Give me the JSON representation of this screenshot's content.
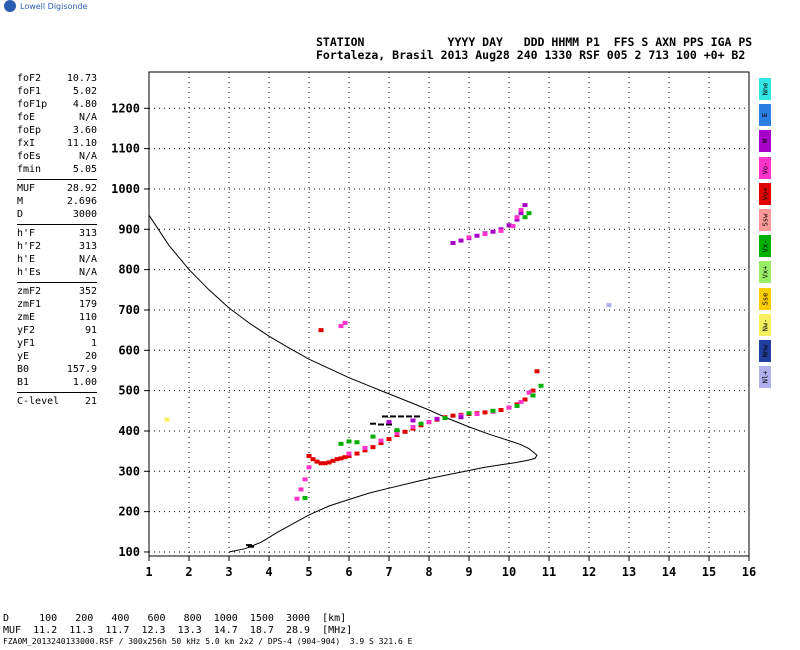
{
  "logo": {
    "text": "Lowell Digisonde",
    "icon": "globe-icon"
  },
  "header": {
    "line1": "STATION            YYYY DAY   DDD HHMM P1  FFS S AXN PPS IGA PS",
    "line2": "Fortaleza, Brasil 2013 Aug28 240 1330 RSF 005 2 713 100 +0+ B2"
  },
  "params": {
    "group1": [
      {
        "name": "foF2",
        "value": "10.73"
      },
      {
        "name": "foF1",
        "value": "5.02"
      },
      {
        "name": "foF1p",
        "value": "4.80"
      },
      {
        "name": "foE",
        "value": "N/A"
      },
      {
        "name": "foEp",
        "value": "3.60"
      },
      {
        "name": "fxI",
        "value": "11.10"
      },
      {
        "name": "foEs",
        "value": "N/A"
      },
      {
        "name": "fmin",
        "value": "5.05"
      }
    ],
    "group2": [
      {
        "name": "MUF",
        "value": "28.92"
      },
      {
        "name": "M",
        "value": "2.696"
      },
      {
        "name": "D",
        "value": "3000"
      }
    ],
    "group3": [
      {
        "name": "h'F",
        "value": "313"
      },
      {
        "name": "h'F2",
        "value": "313"
      },
      {
        "name": "h'E",
        "value": "N/A"
      },
      {
        "name": "h'Es",
        "value": "N/A"
      }
    ],
    "group4": [
      {
        "name": "zmF2",
        "value": "352"
      },
      {
        "name": "zmF1",
        "value": "179"
      },
      {
        "name": "zmE",
        "value": "110"
      },
      {
        "name": "yF2",
        "value": "91"
      },
      {
        "name": "yF1",
        "value": "1"
      },
      {
        "name": "yE",
        "value": "20"
      },
      {
        "name": "B0",
        "value": "157.9"
      },
      {
        "name": "B1",
        "value": "1.00"
      }
    ],
    "group5": [
      {
        "name": "C-level",
        "value": "21"
      }
    ]
  },
  "legend": [
    {
      "label": "Nne",
      "color": "#33e6e6"
    },
    {
      "label": "E",
      "color": "#2b7fe0"
    },
    {
      "label": "W",
      "color": "#a600c8"
    },
    {
      "label": "Vo-",
      "color": "#ff33cc"
    },
    {
      "label": "Vo+",
      "color": "#e00000"
    },
    {
      "label": "Ssw",
      "color": "#ff9999"
    },
    {
      "label": "Vx-",
      "color": "#00b000"
    },
    {
      "label": "Vx+",
      "color": "#99ee66"
    },
    {
      "label": "Sse",
      "color": "#ffcc00"
    },
    {
      "label": "Nw-",
      "color": "#f5f060"
    },
    {
      "label": "Nnw",
      "color": "#2040a0"
    },
    {
      "label": "Nl+",
      "color": "#b0b0ee"
    }
  ],
  "chart_data": {
    "type": "scatter",
    "xlim": [
      1,
      16
    ],
    "ylim": [
      90,
      1290
    ],
    "xticks": [
      1,
      2,
      3,
      4,
      5,
      6,
      7,
      8,
      9,
      10,
      11,
      12,
      13,
      14,
      15,
      16
    ],
    "yticks": [
      100,
      200,
      300,
      400,
      500,
      600,
      700,
      800,
      900,
      1000,
      1100,
      1200
    ],
    "grid": true,
    "series": [
      {
        "color": "#e00000",
        "x": [
          5.0,
          5.1,
          5.2,
          5.3,
          5.4,
          5.5,
          5.6,
          5.7,
          5.8,
          5.9,
          6.0,
          6.2,
          6.4,
          6.6,
          6.8,
          7.0,
          7.2,
          7.4,
          7.6,
          7.8,
          8.0,
          8.2,
          8.4,
          8.6,
          8.8,
          9.0,
          9.2,
          9.4,
          9.6,
          9.8,
          10.0,
          10.2,
          10.4,
          10.6,
          10.7
        ],
        "y": [
          338,
          330,
          324,
          320,
          320,
          322,
          326,
          330,
          332,
          335,
          338,
          344,
          352,
          360,
          370,
          380,
          390,
          398,
          406,
          414,
          422,
          428,
          434,
          438,
          440,
          442,
          444,
          446,
          448,
          452,
          458,
          466,
          478,
          500,
          548
        ]
      },
      {
        "color": "#ff33cc",
        "x": [
          4.7,
          4.8,
          4.9,
          5.0,
          6.0,
          6.4,
          6.8,
          7.2,
          7.6,
          8.0,
          8.4,
          8.8,
          9.2,
          9.6,
          10.0,
          10.3,
          10.5
        ],
        "y": [
          232,
          255,
          280,
          310,
          344,
          358,
          376,
          394,
          410,
          422,
          432,
          438,
          442,
          448,
          458,
          472,
          495
        ]
      },
      {
        "color": "#00b000",
        "x": [
          4.9,
          5.8,
          6.0,
          6.2,
          6.6,
          7.2,
          7.8,
          8.4,
          9.0,
          9.6,
          10.2,
          10.6,
          10.8
        ],
        "y": [
          234,
          368,
          374,
          372,
          386,
          402,
          418,
          432,
          444,
          450,
          462,
          488,
          512
        ]
      },
      {
        "color": "#a600c8",
        "x": [
          8.6,
          8.8,
          9.0,
          9.2,
          9.4,
          9.6,
          9.8,
          10.0,
          10.2,
          10.3,
          10.4,
          7.0,
          7.6,
          8.2,
          8.8
        ],
        "y": [
          866,
          872,
          878,
          884,
          890,
          894,
          900,
          910,
          924,
          940,
          960,
          422,
          426,
          430,
          434
        ]
      },
      {
        "color": "#ff33cc",
        "x": [
          9.0,
          9.4,
          9.8,
          10.1,
          10.2,
          10.3
        ],
        "y": [
          880,
          888,
          896,
          908,
          930,
          948
        ]
      },
      {
        "color": "#e00000",
        "x": [
          5.3
        ],
        "y": [
          650
        ]
      },
      {
        "color": "#ff33cc",
        "x": [
          5.8,
          5.9
        ],
        "y": [
          660,
          668
        ]
      },
      {
        "color": "#00b000",
        "x": [
          10.4,
          10.5
        ],
        "y": [
          930,
          940
        ]
      },
      {
        "color": "#f5f060",
        "x": [
          1.45
        ],
        "y": [
          428
        ]
      },
      {
        "color": "#b0b0ee",
        "x": [
          12.5
        ],
        "y": [
          712
        ]
      }
    ],
    "black_points": {
      "x": [
        6.9,
        7.1,
        7.3,
        7.5,
        7.7,
        6.6,
        6.8,
        7.0,
        3.5,
        3.55
      ],
      "y": [
        436,
        436,
        436,
        436,
        436,
        418,
        416,
        416,
        117,
        113
      ]
    },
    "profile_curve": {
      "x": [
        1.0,
        1.5,
        2.0,
        2.5,
        3.0,
        3.5,
        4.0,
        4.5,
        5.0,
        5.5,
        6.0,
        6.5,
        7.0,
        7.5,
        8.0,
        8.5,
        9.0,
        9.5,
        10.0,
        10.3,
        10.5,
        10.6,
        10.7,
        10.65,
        10.5,
        10.2,
        9.8,
        9.4,
        9.0,
        8.5,
        8.0,
        7.5,
        7.0,
        6.5,
        6.0,
        5.5,
        5.0,
        4.6,
        4.2,
        3.8,
        3.4,
        3.0
      ],
      "y": [
        935,
        860,
        800,
        750,
        705,
        668,
        635,
        606,
        578,
        555,
        532,
        512,
        492,
        472,
        452,
        430,
        410,
        392,
        376,
        366,
        356,
        348,
        340,
        332,
        328,
        322,
        316,
        310,
        302,
        292,
        282,
        270,
        258,
        246,
        230,
        214,
        192,
        170,
        148,
        124,
        108,
        100
      ]
    }
  },
  "table": {
    "row1": "D     100   200   400   600   800  1000  1500  3000  [km]",
    "row2": "MUF  11.2  11.3  11.7  12.3  13.3  14.7  18.7  28.9  [MHz]"
  },
  "footer": "FZA0M_2013240133000.RSF / 300x256h 50 kHz 5.0 km 2x2 / DPS-4 (904-904)  3.9 S 321.6 E"
}
